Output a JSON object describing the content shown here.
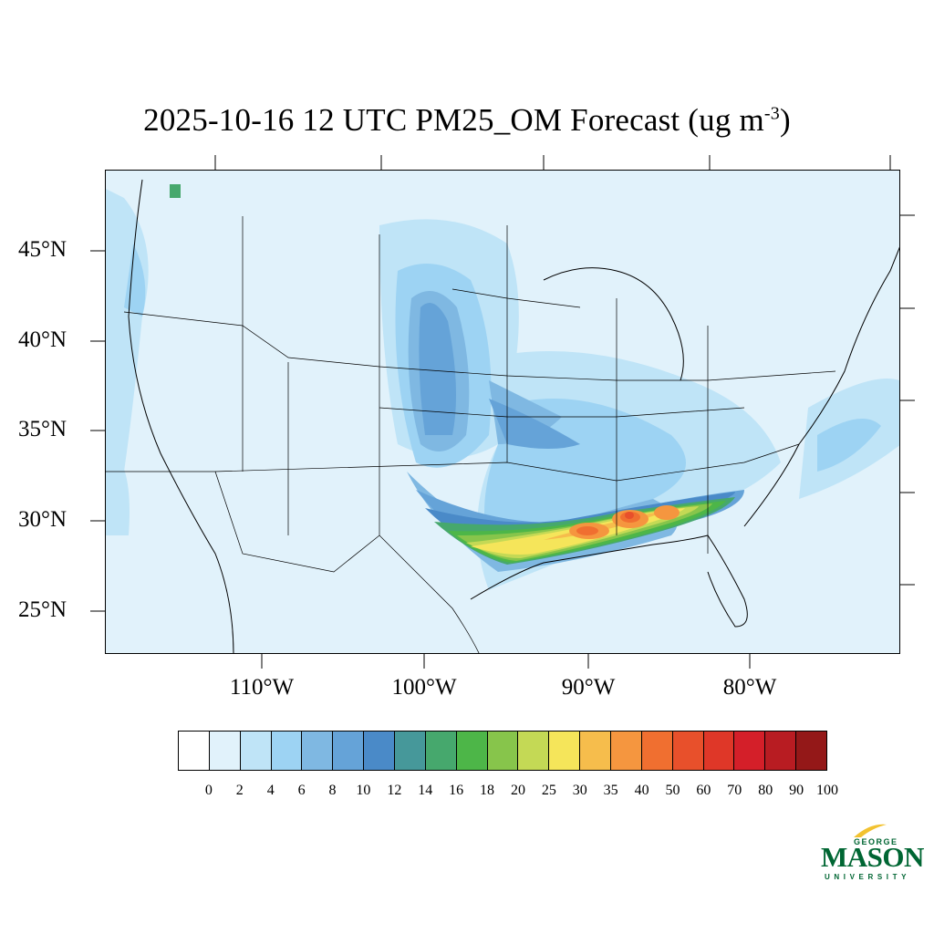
{
  "title": {
    "main": "2025-10-16 12 UTC PM25_OM Forecast (ug m",
    "exponent": "-3",
    "close": ")"
  },
  "latitude_labels": [
    "45°N",
    "40°N",
    "35°N",
    "30°N",
    "25°N"
  ],
  "longitude_labels": [
    "110°W",
    "100°W",
    "90°W",
    "80°W"
  ],
  "colorbar": {
    "labels": [
      "0",
      "2",
      "4",
      "6",
      "8",
      "10",
      "12",
      "14",
      "16",
      "18",
      "20",
      "25",
      "30",
      "35",
      "40",
      "50",
      "60",
      "70",
      "80",
      "90",
      "100"
    ],
    "colors": [
      "#ffffff",
      "#e1f2fb",
      "#bfe4f7",
      "#9dd3f3",
      "#7fb8e2",
      "#65a3d8",
      "#4a8ac8",
      "#46989a",
      "#46a86d",
      "#4db648",
      "#87c54b",
      "#c4d955",
      "#f5e55a",
      "#f6bd4c",
      "#f5963f",
      "#f06f30",
      "#e8502b",
      "#df3728",
      "#d41f29",
      "#b81c22",
      "#941818"
    ]
  },
  "logo": {
    "top": "GEORGE",
    "name": "MASON",
    "bottom": "UNIVERSITY",
    "color": "#006633",
    "accent": "#f2c230"
  },
  "map": {
    "background_color": "#e1f2fb",
    "region": "Contiguous United States",
    "field": "PM25_OM"
  }
}
